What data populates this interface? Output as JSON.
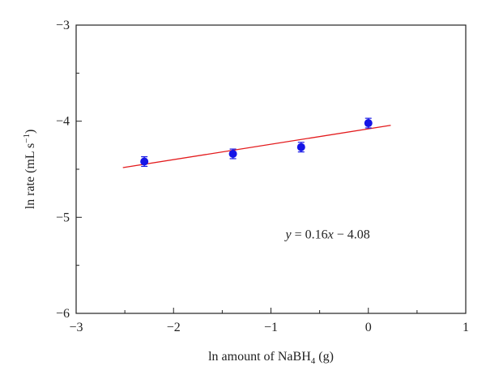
{
  "chart_data": {
    "type": "scatter",
    "xlabel": {
      "pre": "ln amount of NaBH",
      "sub": "4",
      "post": " (g)"
    },
    "ylabel": {
      "pre": "ln rate (mL s",
      "sup": "−1",
      "post": ")"
    },
    "xlim": [
      -3,
      1
    ],
    "ylim": [
      -6,
      -3
    ],
    "x_ticks": [
      -3,
      -2,
      -1,
      0,
      1
    ],
    "x_tick_labels": [
      "−3",
      "−2",
      "−1",
      "0",
      "1"
    ],
    "y_ticks": [
      -3,
      -4,
      -5,
      -6
    ],
    "y_tick_labels": [
      "−3",
      "−4",
      "−5",
      "−6"
    ],
    "minor_tick_step": 0.5,
    "grid": false,
    "series": [
      {
        "x": [
          -2.3,
          -1.39,
          -0.69,
          0.0
        ],
        "y": [
          -4.42,
          -4.34,
          -4.27,
          -4.02
        ],
        "error": [
          0.05,
          0.05,
          0.05,
          0.05
        ],
        "color": "#1515e6"
      }
    ],
    "fit_line": {
      "slope": 0.16,
      "intercept": -4.08,
      "x_range": [
        -2.52,
        0.23
      ],
      "color": "#e31a1c"
    },
    "annotation": {
      "parts": [
        {
          "text": "y",
          "italic": true
        },
        {
          "text": " = 0.16",
          "italic": false
        },
        {
          "text": "x",
          "italic": true
        },
        {
          "text": " − 4.08",
          "italic": false
        }
      ],
      "x": -0.85,
      "y": -5.22
    }
  }
}
